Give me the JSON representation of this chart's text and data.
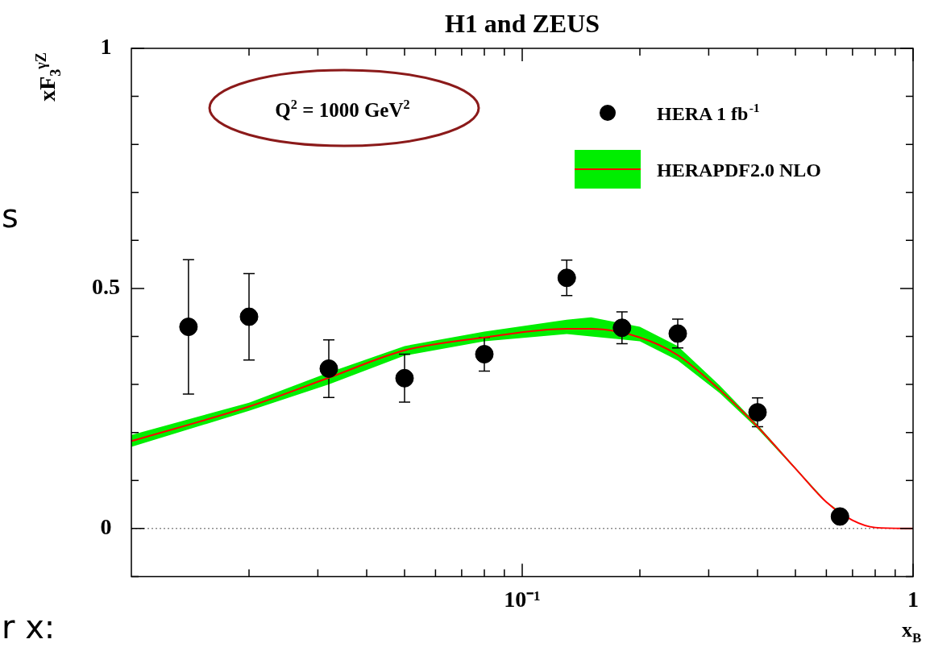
{
  "chart_data": {
    "type": "scatter",
    "title": "H1 and ZEUS",
    "xlabel": "x$_{B}$",
    "ylabel": "xF$_{3}$$^{γZ}$",
    "log": "x",
    "xlim": [
      0.01,
      1
    ],
    "ylim": [
      -0.1,
      1
    ],
    "xticks": [
      {
        "value": 0.02,
        "label": null
      },
      {
        "value": 0.03,
        "label": null
      },
      {
        "value": 0.04,
        "label": null
      },
      {
        "value": 0.05,
        "label": null
      },
      {
        "value": 0.06,
        "label": null
      },
      {
        "value": 0.07,
        "label": null
      },
      {
        "value": 0.08,
        "label": null
      },
      {
        "value": 0.09,
        "label": null
      },
      {
        "value": 0.1,
        "label": "10⁻¹"
      },
      {
        "value": 0.2,
        "label": null
      },
      {
        "value": 0.3,
        "label": null
      },
      {
        "value": 0.4,
        "label": null
      },
      {
        "value": 0.5,
        "label": null
      },
      {
        "value": 0.6,
        "label": null
      },
      {
        "value": 0.7,
        "label": null
      },
      {
        "value": 0.8,
        "label": null
      },
      {
        "value": 0.9,
        "label": null
      },
      {
        "value": 1,
        "label": "1"
      }
    ],
    "yticks": [
      {
        "value": -0.1,
        "label": null
      },
      0,
      {
        "value": 0.1,
        "label": null
      },
      {
        "value": 0.2,
        "label": null
      },
      {
        "value": 0.3,
        "label": null
      },
      {
        "value": 0.4,
        "label": null
      },
      0.5,
      {
        "value": 0.6,
        "label": null
      },
      {
        "value": 0.7,
        "label": null
      },
      {
        "value": 0.8,
        "label": null
      },
      {
        "value": 0.9,
        "label": null
      },
      1
    ],
    "legend": "top right",
    "grid": false,
    "ref_lines": [
      {
        "axis": "y",
        "value": 0,
        "color": "#555555",
        "line_style": "dotted"
      }
    ],
    "annotations": [
      "Q$^{2}$ = 1000 GeV$^{2}$",
      "s",
      "r x:"
    ],
    "series": [
      {
        "name": "HERA 1 fb$^{-1}$",
        "color": "#000000",
        "marker": "circle",
        "x": [
          0.014,
          0.02,
          0.032,
          0.05,
          0.08,
          0.13,
          0.18,
          0.25,
          0.4,
          0.65
        ],
        "values": [
          0.42,
          0.441,
          0.333,
          0.313,
          0.363,
          0.522,
          0.418,
          0.406,
          0.242,
          0.025
        ],
        "errors": [
          0.14,
          0.09,
          0.06,
          0.05,
          0.035,
          0.037,
          0.033,
          0.03,
          0.03,
          null
        ]
      },
      {
        "name": "HERAPDF2.0 NLO",
        "type": "line",
        "color": "#ff0000",
        "marker": "none",
        "line_style": "solid",
        "x": [
          0.01,
          0.02,
          0.032,
          0.05,
          0.08,
          0.13,
          0.15,
          0.2,
          0.25,
          0.32,
          0.4,
          0.5,
          0.6,
          0.7,
          0.8,
          1
        ],
        "values": [
          0.182,
          0.254,
          0.314,
          0.371,
          0.398,
          0.416,
          0.416,
          0.398,
          0.361,
          0.289,
          0.212,
          0.125,
          0.055,
          0.017,
          0.002,
          0
        ],
        "lower": [
          0.17,
          0.245,
          0.3,
          0.36,
          0.39,
          0.405,
          0.4,
          0.39,
          0.35,
          0.282,
          0.208,
          0.123,
          0.054,
          0.017,
          0.002,
          0
        ],
        "upper": [
          0.195,
          0.262,
          0.325,
          0.38,
          0.41,
          0.435,
          0.44,
          0.42,
          0.38,
          0.298,
          0.216,
          0.127,
          0.056,
          0.017,
          0.002,
          0
        ]
      }
    ]
  }
}
